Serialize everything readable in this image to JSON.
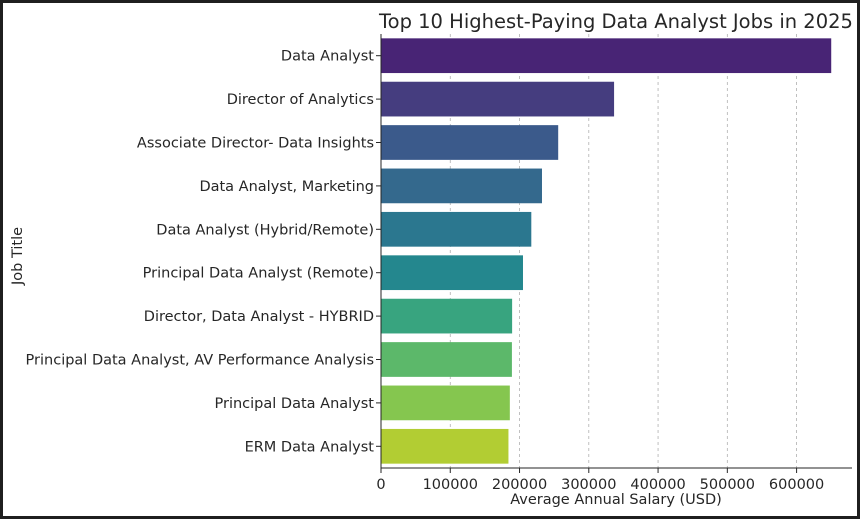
{
  "chart_data": {
    "type": "bar",
    "orientation": "horizontal",
    "title": "Top 10 Highest-Paying Data Analyst Jobs in 2025",
    "xlabel": "Average Annual Salary (USD)",
    "ylabel": "Job Title",
    "xlim": [
      0,
      680000
    ],
    "xticks": [
      0,
      100000,
      200000,
      300000,
      400000,
      500000,
      600000
    ],
    "grid": "vertical dashed",
    "categories": [
      "Data Analyst",
      "Director of Analytics",
      "Associate Director- Data Insights",
      "Data Analyst, Marketing",
      "Data Analyst (Hybrid/Remote)",
      "Principal Data Analyst (Remote)",
      "Director, Data Analyst - HYBRID",
      "Principal Data Analyst, AV Performance Analysis",
      "Principal Data Analyst",
      "ERM Data Analyst"
    ],
    "values": [
      650000,
      336500,
      255830,
      232423,
      217000,
      205000,
      189309,
      189000,
      186000,
      184000
    ],
    "colors": [
      "#482475",
      "#453d7f",
      "#3b5a8b",
      "#34698d",
      "#2b778f",
      "#24878e",
      "#38a47f",
      "#5cb86a",
      "#85c64f",
      "#b2cd33"
    ]
  }
}
